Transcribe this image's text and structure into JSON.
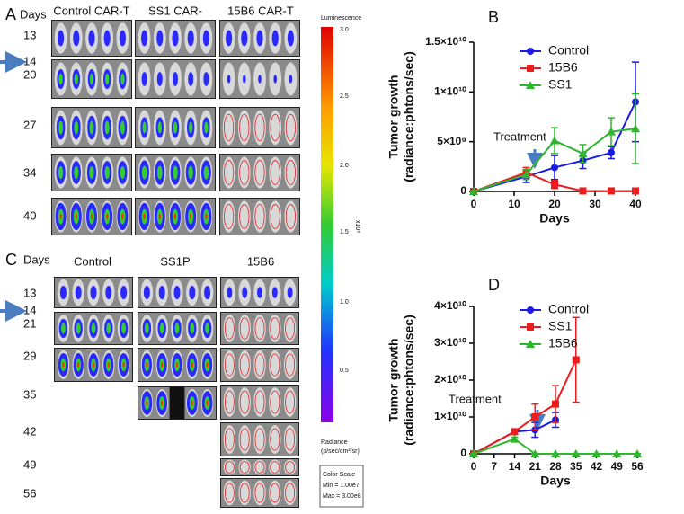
{
  "panel_a": {
    "letter": "A",
    "days_label": "Days",
    "columns": [
      "Control CAR-T",
      "SS1 CAR-",
      "15B6 CAR-T"
    ],
    "days": [
      "13",
      "14",
      "20",
      "27",
      "34",
      "40"
    ]
  },
  "colorbar": {
    "title": "Luminescence",
    "ticks": [
      "3.0",
      "2.5",
      "2.0",
      "1.5",
      "1.0",
      "0.5"
    ],
    "unit": "x10⁸",
    "radiance": "Radiance",
    "radiance_unit": "(p/sec/cm²/sr)",
    "scale_title": "Color Scale",
    "min": "Min = 1.00e7",
    "max": "Max = 3.00e8"
  },
  "panel_c": {
    "letter": "C",
    "days_label": "Days",
    "columns": [
      "Control",
      "SS1P",
      "15B6"
    ],
    "days": [
      "13",
      "14",
      "21",
      "29",
      "35",
      "42",
      "49",
      "56"
    ]
  },
  "chart_data": [
    {
      "type": "line",
      "title": "B",
      "xlabel": "Days",
      "ylabel": [
        "Tumor growth",
        "(radiance:phtons/sec)"
      ],
      "annotation": "Treatment",
      "xlim": [
        0,
        40
      ],
      "xticks": [
        0,
        10,
        20,
        30,
        40
      ],
      "ylim": [
        0,
        15000000000
      ],
      "yticks": [
        0,
        {
          "value": 5000000000,
          "label": "5×10⁹"
        },
        {
          "value": 10000000000,
          "label": "1×10¹⁰"
        },
        {
          "value": 15000000000,
          "label": "1.5×10¹⁰"
        }
      ],
      "series": [
        {
          "name": "Control",
          "color": "#1a1ae6",
          "marker": "circle",
          "x": [
            0,
            13,
            20,
            27,
            34,
            40
          ],
          "values": [
            0,
            1500000000,
            2400000000,
            3100000000,
            3900000000,
            9000000000
          ],
          "errors": [
            0,
            600000000,
            1200000000,
            800000000,
            600000000,
            4000000000
          ]
        },
        {
          "name": "15B6",
          "color": "#ee1c1c",
          "marker": "square",
          "x": [
            0,
            13,
            20,
            27,
            34,
            40
          ],
          "values": [
            0,
            1900000000,
            700000000,
            50000000,
            50000000,
            50000000
          ],
          "errors": [
            0,
            500000000,
            400000000,
            0,
            0,
            0
          ]
        },
        {
          "name": "SS1",
          "color": "#2fb52f",
          "marker": "triangle",
          "x": [
            0,
            13,
            20,
            27,
            34,
            40
          ],
          "values": [
            0,
            1700000000,
            5100000000,
            3800000000,
            6000000000,
            6300000000
          ],
          "errors": [
            0,
            500000000,
            1300000000,
            900000000,
            1400000000,
            3500000000
          ]
        }
      ]
    },
    {
      "type": "line",
      "title": "D",
      "xlabel": "Days",
      "ylabel": [
        "Tumor growth",
        "(radiance:phtons/sec)"
      ],
      "annotation": "Treatment",
      "xlim": [
        0,
        56
      ],
      "xticks": [
        0,
        7,
        14,
        21,
        28,
        35,
        42,
        49,
        56
      ],
      "ylim": [
        0,
        40000000000
      ],
      "yticks": [
        0,
        {
          "value": 10000000000,
          "label": "1×10¹⁰"
        },
        {
          "value": 20000000000,
          "label": "2×10¹⁰"
        },
        {
          "value": 30000000000,
          "label": "3×10¹⁰"
        },
        {
          "value": 40000000000,
          "label": "4×10¹⁰"
        }
      ],
      "series": [
        {
          "name": "Control",
          "color": "#1a1ae6",
          "marker": "circle",
          "x": [
            0,
            14,
            21,
            28
          ],
          "values": [
            0,
            6000000000,
            6500000000,
            9200000000
          ],
          "errors": [
            0,
            500000000,
            2000000000,
            2000000000
          ]
        },
        {
          "name": "SS1",
          "color": "#ee1c1c",
          "marker": "square",
          "x": [
            0,
            14,
            21,
            28,
            35
          ],
          "values": [
            0,
            6000000000,
            10000000000,
            13500000000,
            25500000000
          ],
          "errors": [
            0,
            500000000,
            3500000000,
            5000000000,
            11500000000
          ]
        },
        {
          "name": "15B6",
          "color": "#2fb52f",
          "marker": "triangle",
          "x": [
            0,
            14,
            21,
            28,
            35,
            42,
            49,
            56
          ],
          "values": [
            0,
            4000000000,
            0,
            0,
            0,
            0,
            0,
            0
          ],
          "errors": [
            0,
            500000000,
            0,
            0,
            0,
            0,
            0,
            0
          ]
        }
      ]
    }
  ]
}
